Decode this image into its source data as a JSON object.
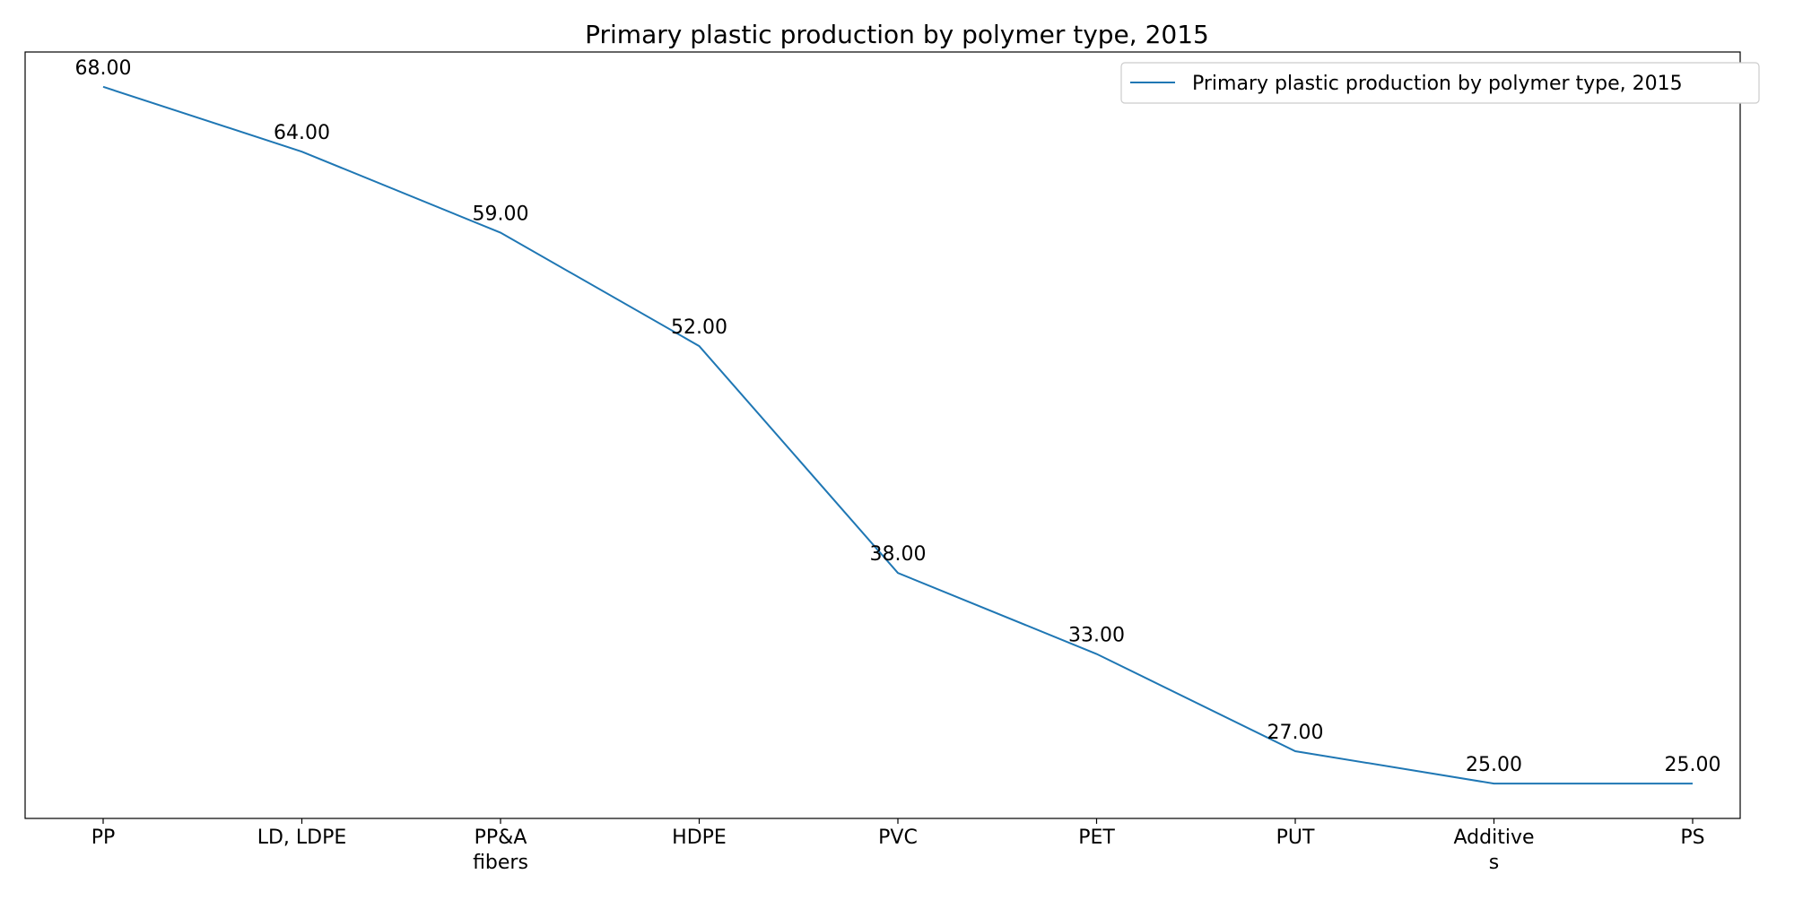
{
  "chart_data": {
    "type": "line",
    "title": "Primary plastic production by polymer type, 2015",
    "xlabel": "",
    "ylabel": "",
    "categories": [
      "PP",
      "LD, LDPE",
      "PP&A fibers",
      "HDPE",
      "PVC",
      "PET",
      "PUT",
      "Additives",
      "PS"
    ],
    "category_tick_lines": [
      [
        "PP"
      ],
      [
        "LD, LDPE"
      ],
      [
        "PP&A",
        "fibers"
      ],
      [
        "HDPE"
      ],
      [
        "PVC"
      ],
      [
        "PET"
      ],
      [
        "PUT"
      ],
      [
        "Additive",
        "s"
      ],
      [
        "PS"
      ]
    ],
    "series": [
      {
        "name": "Primary plastic production by polymer type, 2015",
        "values": [
          68,
          64,
          59,
          52,
          38,
          33,
          27,
          25,
          25
        ],
        "value_labels": [
          "68.00",
          "64.00",
          "59.00",
          "52.00",
          "38.00",
          "33.00",
          "27.00",
          "25.00",
          "25.00"
        ],
        "color": "#1f77b4"
      }
    ],
    "ylim": [
      22.85,
      70.15
    ],
    "y_ticks_visible": false,
    "grid": false,
    "legend": "upper right"
  }
}
